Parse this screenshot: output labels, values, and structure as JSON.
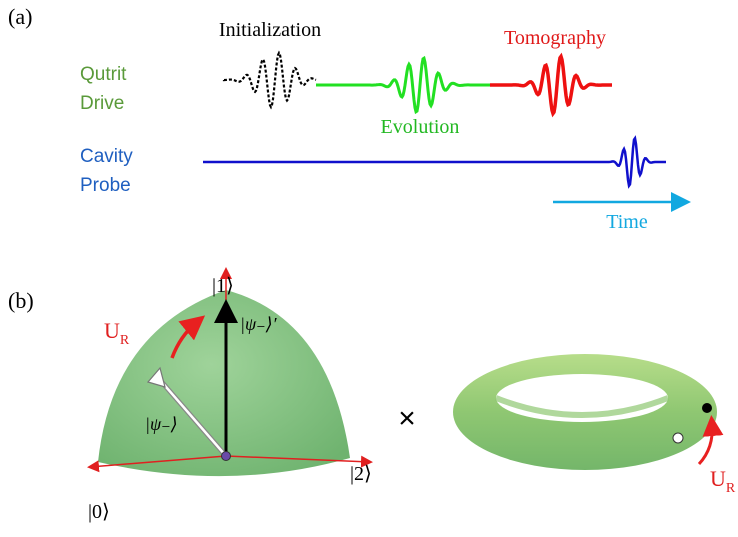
{
  "panel_a": {
    "label": "(a)",
    "initialization": "Initialization",
    "tomography": "Tomography",
    "qutrit": "Qutrit",
    "drive": "Drive",
    "evolution": "Evolution",
    "cavity": "Cavity",
    "probe": "Probe",
    "time": "Time"
  },
  "panel_b": {
    "label": "(b)",
    "ket_1": "|1⟩",
    "psi_prime": "|ψ₋⟩′",
    "rotation_left": {
      "main": "U",
      "sub": "R"
    },
    "psi": "|ψ₋⟩",
    "ket_0": "|0⟩",
    "ket_2": "|2⟩",
    "times": "×",
    "rotation_right": {
      "main": "U",
      "sub": "R"
    }
  }
}
